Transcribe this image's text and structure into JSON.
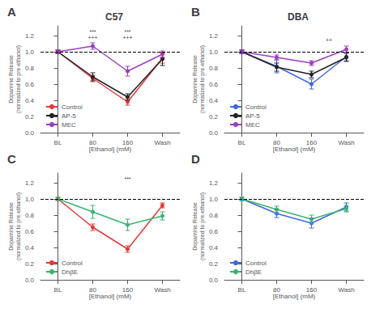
{
  "chart_data": [
    {
      "type": "line",
      "title": "C57",
      "panel_label": "A",
      "categories": [
        "BL",
        "80",
        "160",
        "Wash"
      ],
      "xlabel": "[Ethanol] (mM)",
      "ylabel": "Dopamine Release\n(normalized to pre-ethanol)",
      "ylim": [
        0.0,
        1.32
      ],
      "yticks": [
        {
          "value": 0.0,
          "label": "0.0"
        },
        0.2,
        0.4,
        0.6,
        0.8,
        {
          "value": 1.0,
          "label": "1.0"
        },
        1.2
      ],
      "grid": false,
      "legend": "lower left",
      "reference_lines": [
        {
          "y": 1.0,
          "color": "#000000",
          "line_style": "dashed"
        }
      ],
      "series": [
        {
          "name": "Control",
          "color": "#e8393a",
          "marker": "circle",
          "values": [
            1.0,
            0.67,
            0.38,
            0.92
          ],
          "errors": [
            0.02,
            0.04,
            0.04,
            0.06
          ]
        },
        {
          "name": "AP-5",
          "color": "#222222",
          "marker": "circle",
          "values": [
            1.0,
            0.69,
            0.44,
            0.91
          ],
          "errors": [
            0.02,
            0.05,
            0.04,
            0.08
          ]
        },
        {
          "name": "MEC",
          "color": "#9b3fbf",
          "marker": "circle",
          "values": [
            1.0,
            1.07,
            0.76,
            0.97
          ],
          "errors": [
            0.02,
            0.04,
            0.06,
            0.04
          ]
        }
      ],
      "annotations": [
        {
          "x": 1,
          "y": 1.28,
          "text": "***"
        },
        {
          "x": 1,
          "y": 1.21,
          "text": "+++"
        },
        {
          "x": 2,
          "y": 1.28,
          "text": "***"
        },
        {
          "x": 2,
          "y": 1.21,
          "text": "+++"
        }
      ]
    },
    {
      "type": "line",
      "title": "DBA",
      "panel_label": "B",
      "categories": [
        "BL",
        "80",
        "160",
        "Wash"
      ],
      "xlabel": "[Ethanol] (mM)",
      "ylabel": "Dopamine Release\n(normalized to pre-ethanol)",
      "ylim": [
        0.0,
        1.32
      ],
      "yticks": [
        {
          "value": 0.0,
          "label": "0.0"
        },
        0.2,
        0.4,
        0.6,
        0.8,
        {
          "value": 1.0,
          "label": "1.0"
        },
        1.2
      ],
      "grid": false,
      "legend": "lower left",
      "reference_lines": [
        {
          "y": 1.0,
          "color": "#000000",
          "line_style": "dashed"
        }
      ],
      "series": [
        {
          "name": "Control",
          "color": "#4169e1",
          "marker": "circle",
          "values": [
            1.0,
            0.82,
            0.6,
            0.94
          ],
          "errors": [
            0.02,
            0.08,
            0.06,
            0.05
          ]
        },
        {
          "name": "AP-5",
          "color": "#222222",
          "marker": "circle",
          "values": [
            1.0,
            0.81,
            0.72,
            0.93
          ],
          "errors": [
            0.02,
            0.05,
            0.04,
            0.05
          ]
        },
        {
          "name": "MEC",
          "color": "#9b3fbf",
          "marker": "circle",
          "values": [
            1.0,
            0.93,
            0.86,
            1.03
          ],
          "errors": [
            0.02,
            0.03,
            0.03,
            0.04
          ]
        }
      ],
      "annotations": [
        {
          "x": 2.5,
          "y": 1.18,
          "text": "++"
        }
      ]
    },
    {
      "type": "line",
      "panel_label": "C",
      "categories": [
        "BL",
        "80",
        "160",
        "Wash"
      ],
      "xlabel": "[Ethanol] (mM)",
      "ylabel": "Dopamine Release\n(normalized to pre-ethanol)",
      "ylim": [
        0.0,
        1.32
      ],
      "yticks": [
        {
          "value": 0.0,
          "label": "0.0"
        },
        0.2,
        0.4,
        0.6,
        0.8,
        {
          "value": 1.0,
          "label": "1.0"
        },
        1.2
      ],
      "grid": false,
      "legend": "lower left",
      "reference_lines": [
        {
          "y": 1.0,
          "color": "#000000",
          "line_style": "dashed"
        }
      ],
      "series": [
        {
          "name": "Control",
          "color": "#e8393a",
          "marker": "circle",
          "values": [
            1.0,
            0.65,
            0.38,
            0.92
          ],
          "errors": [
            0.02,
            0.04,
            0.04,
            0.03
          ]
        },
        {
          "name": "DhβE",
          "color": "#3cb371",
          "marker": "circle",
          "values": [
            1.0,
            0.84,
            0.68,
            0.79
          ],
          "errors": [
            0.02,
            0.08,
            0.07,
            0.05
          ]
        }
      ],
      "annotations": [
        {
          "x": 2,
          "y": 1.28,
          "text": "***"
        }
      ]
    },
    {
      "type": "line",
      "panel_label": "D",
      "categories": [
        "BL",
        "80",
        "160",
        "Wash"
      ],
      "xlabel": "[Ethanol] (mM)",
      "ylabel": "Dopamine Release\n(normalized to pre-ethanol)",
      "ylim": [
        0.0,
        1.32
      ],
      "yticks": [
        {
          "value": 0.0,
          "label": "0.0"
        },
        0.2,
        0.4,
        0.6,
        0.8,
        {
          "value": 1.0,
          "label": "1.0"
        },
        1.2
      ],
      "grid": false,
      "legend": "lower left",
      "reference_lines": [
        {
          "y": 1.0,
          "color": "#000000",
          "line_style": "dashed"
        }
      ],
      "series": [
        {
          "name": "Control",
          "color": "#4169e1",
          "marker": "circle",
          "values": [
            1.0,
            0.82,
            0.7,
            0.9
          ],
          "errors": [
            0.02,
            0.05,
            0.06,
            0.05
          ]
        },
        {
          "name": "DhβE",
          "color": "#3cb371",
          "marker": "circle",
          "values": [
            1.0,
            0.87,
            0.75,
            0.88
          ],
          "errors": [
            0.02,
            0.04,
            0.05,
            0.04
          ]
        }
      ],
      "annotations": []
    }
  ]
}
